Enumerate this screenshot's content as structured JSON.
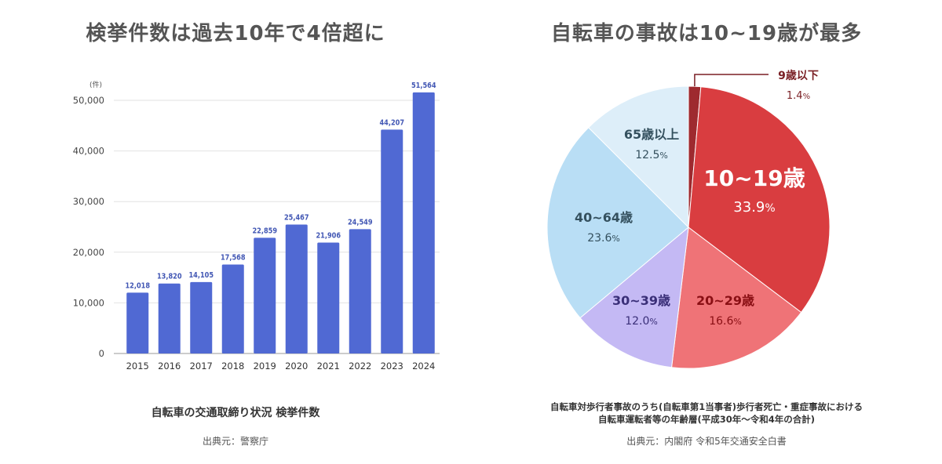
{
  "bar_title": "検挙件数は過去10年で4倍超に",
  "pie_title": "自転車の事故は10~19歳が最多",
  "bar_caption": "自転車の交通取締り状況 検挙件数",
  "bar_source": "出典元：警察庁",
  "pie_caption_line1": "自転車対歩行者事故のうち(自転車第1当事者)歩行者死亡・重症事故における",
  "pie_caption_line2": "自転車運転者等の年齢層(平成30年～令和4年の合計)",
  "pie_source": "出典元：内閣府 令和5年交通安全白書",
  "chart_data": [
    {
      "type": "bar",
      "title": "検挙件数は過去10年で4倍超に",
      "ylabel": "(件)",
      "categories": [
        "2015",
        "2016",
        "2017",
        "2018",
        "2019",
        "2020",
        "2021",
        "2022",
        "2023",
        "2024"
      ],
      "values": [
        12018,
        13820,
        14105,
        17568,
        22859,
        25467,
        21906,
        24549,
        44207,
        51564
      ],
      "data_labels": [
        "12,018",
        "13,820",
        "14,105",
        "17,568",
        "22,859",
        "25,467",
        "21,906",
        "24,549",
        "44,207",
        "51,564"
      ],
      "yticks": [
        0,
        10000,
        20000,
        30000,
        40000,
        50000
      ],
      "ytick_labels": [
        "0",
        "10,000",
        "20,000",
        "30,000",
        "40,000",
        "50,000"
      ],
      "ylim": [
        0,
        50000
      ],
      "grid": true,
      "color": "#5069d3"
    },
    {
      "type": "pie",
      "title": "自転車の事故は10~19歳が最多",
      "slices": [
        {
          "label": "9歳以下",
          "value": 1.4,
          "pct_num": "1.4",
          "color": "#9e2a2f",
          "text_color": "#7a1f24"
        },
        {
          "label": "10~19歳",
          "value": 33.9,
          "pct_num": "33.9",
          "color": "#d93d40",
          "text_color": "#ffffff"
        },
        {
          "label": "20~29歳",
          "value": 16.6,
          "pct_num": "16.6",
          "color": "#ef7377",
          "text_color": "#8a0f14"
        },
        {
          "label": "30~39歳",
          "value": 12.0,
          "pct_num": "12.0",
          "color": "#c4b9f4",
          "text_color": "#3a2f78"
        },
        {
          "label": "40~64歳",
          "value": 23.6,
          "pct_num": "23.6",
          "color": "#b9def5",
          "text_color": "#34505e"
        },
        {
          "label": "65歳以上",
          "value": 12.5,
          "pct_num": "12.5",
          "color": "#ddeef9",
          "text_color": "#34505e"
        }
      ],
      "pct_suffix": "%"
    }
  ]
}
